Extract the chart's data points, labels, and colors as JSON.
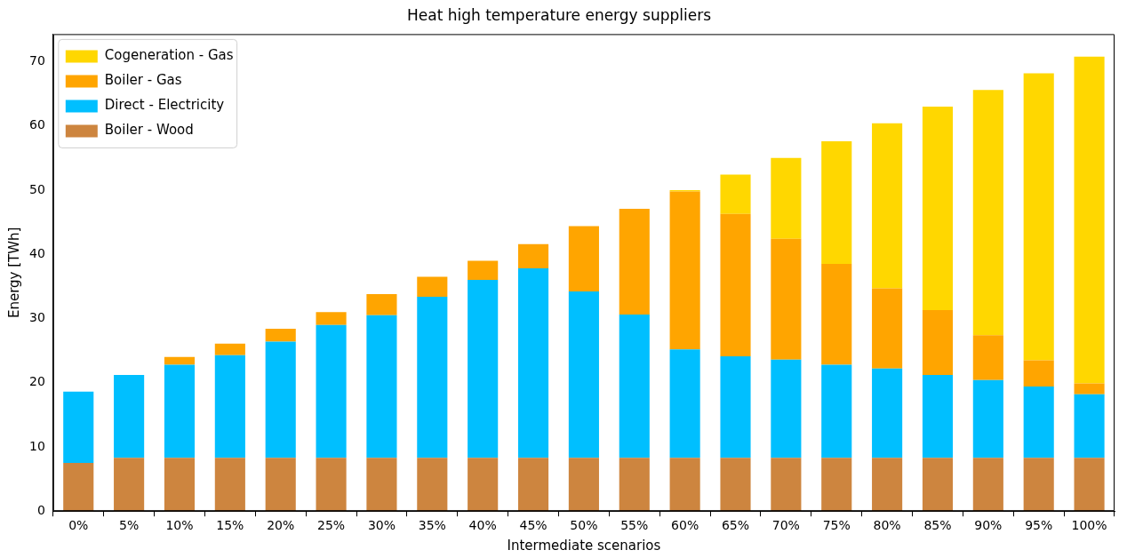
{
  "chart_data": {
    "type": "bar",
    "title": "Heat high temperature energy suppliers",
    "xlabel": "Intermediate scenarios",
    "ylabel": "Energy [TWh]",
    "categories": [
      "0%",
      "5%",
      "10%",
      "15%",
      "20%",
      "25%",
      "30%",
      "35%",
      "40%",
      "45%",
      "50%",
      "55%",
      "60%",
      "65%",
      "70%",
      "75%",
      "80%",
      "85%",
      "90%",
      "95%",
      "100%"
    ],
    "stacked": true,
    "legend": "top left",
    "grid": false,
    "ylim": [
      0,
      74.3
    ],
    "yticks": [
      0,
      10,
      20,
      30,
      40,
      50,
      60,
      70
    ],
    "series": [
      {
        "name": "Boiler - Wood",
        "color": "#cd853f",
        "values": [
          7.5,
          8.3,
          8.3,
          8.3,
          8.3,
          8.3,
          8.3,
          8.3,
          8.3,
          8.3,
          8.3,
          8.3,
          8.3,
          8.3,
          8.3,
          8.3,
          8.3,
          8.3,
          8.3,
          8.3,
          8.3
        ]
      },
      {
        "name": "Direct - Electricity",
        "color": "#00bfff",
        "values": [
          11.1,
          12.9,
          14.5,
          16.0,
          18.1,
          20.7,
          22.2,
          25.1,
          27.7,
          29.5,
          25.9,
          22.3,
          16.9,
          15.8,
          15.3,
          14.5,
          13.9,
          12.9,
          12.1,
          11.1,
          9.9
        ]
      },
      {
        "name": "Boiler - Gas",
        "color": "#ffa500",
        "values": [
          0,
          0,
          1.2,
          1.8,
          2.0,
          2.0,
          3.3,
          3.1,
          3.0,
          3.8,
          10.2,
          16.5,
          24.6,
          22.2,
          18.8,
          15.7,
          12.5,
          10.1,
          7.0,
          4.1,
          1.7
        ]
      },
      {
        "name": "Cogeneration - Gas",
        "color": "#ffd700",
        "values": [
          0,
          0,
          0,
          0,
          0,
          0,
          0,
          0,
          0,
          0,
          0,
          0,
          0.2,
          6.1,
          12.6,
          19.1,
          25.7,
          31.7,
          38.2,
          44.7,
          50.9
        ]
      }
    ]
  }
}
